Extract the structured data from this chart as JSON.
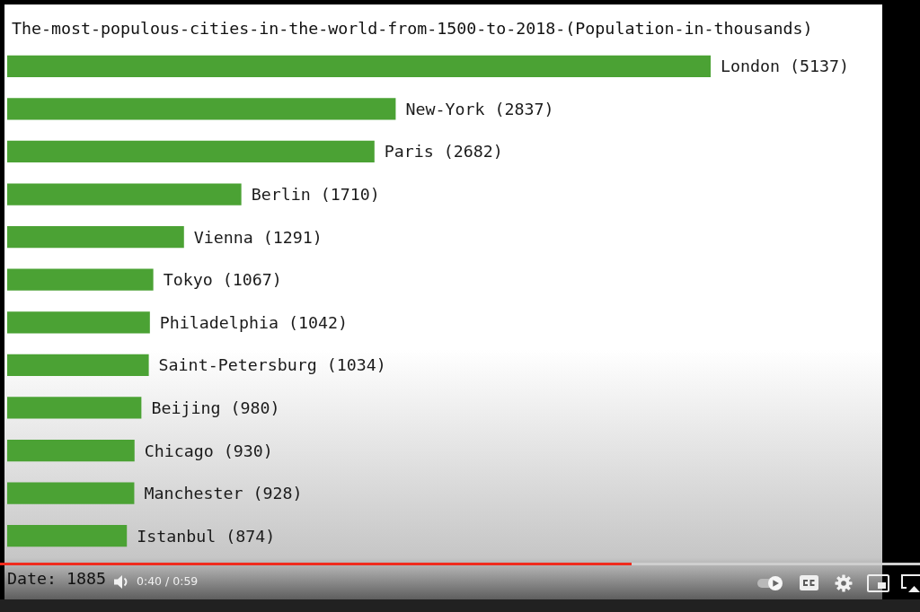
{
  "chart_data": {
    "type": "bar",
    "orientation": "horizontal",
    "tick_labels": false,
    "title": "The-most-populous-cities-in-the-world-from-1500-to-2018-(Population-in-thousands)",
    "categories": [
      null,
      null,
      null,
      null,
      null,
      null,
      null,
      null,
      null,
      null,
      null,
      null
    ],
    "values": [
      5137,
      2837,
      2682,
      1710,
      1291,
      1067,
      1042,
      1034,
      980,
      930,
      928,
      874
    ],
    "color": "#4ba234",
    "value_labels": [
      "London (5137)",
      "New-York (2837)",
      "Paris (2682)",
      "Berlin (1710)",
      "Vienna (1291)",
      "Tokyo (1067)",
      "Philadelphia (1042)",
      "Saint-Petersburg (1034)",
      "Beijing (980)",
      "Chicago (930)",
      "Manchester (928)",
      "Istanbul (874)"
    ],
    "annotations": [
      "Date: 1885",
      "0:40 / 0:59"
    ]
  }
}
